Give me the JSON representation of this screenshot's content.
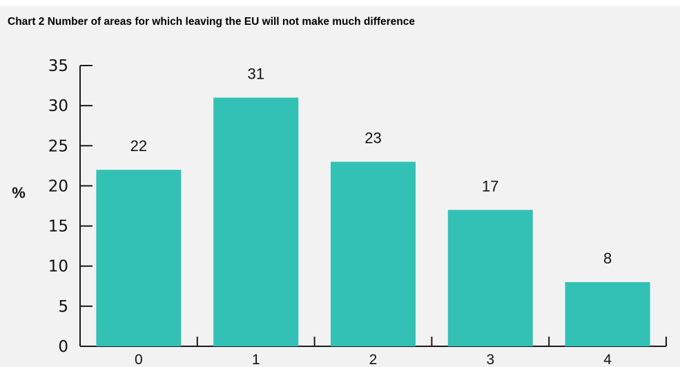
{
  "colors": {
    "background": "#f2f2f2",
    "bar": "#33c1b5",
    "axis": "#1a1a1a",
    "text": "#111111"
  },
  "chart_data": {
    "type": "bar",
    "title": "Chart 2 Number of areas for which leaving the EU will not make much difference",
    "xlabel": "",
    "ylabel": "%",
    "categories": [
      "0",
      "1",
      "2",
      "3",
      "4"
    ],
    "values": [
      22,
      31,
      23,
      17,
      8
    ],
    "data_labels": [
      "22",
      "31",
      "23",
      "17",
      "8"
    ],
    "ylim": [
      0,
      35
    ],
    "yticks": [
      0,
      5,
      10,
      15,
      20,
      25,
      30,
      35
    ],
    "ytick_labels": [
      "0",
      "5",
      "10",
      "15",
      "20",
      "25",
      "30",
      "35"
    ],
    "grid": false,
    "legend": "none"
  }
}
